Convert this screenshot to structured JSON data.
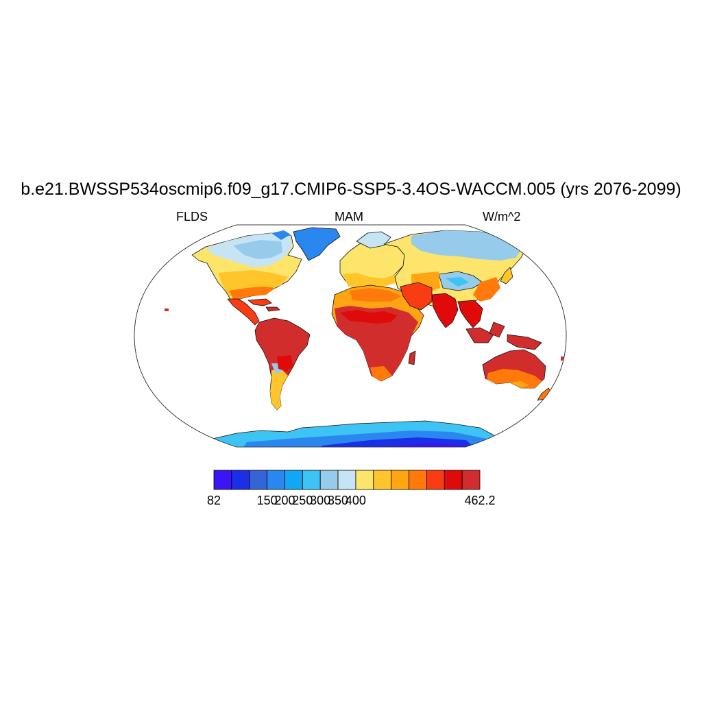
{
  "header": {
    "title": "b.e21.BWSSP534oscmip6.f09_g17.CMIP6-SSP5-3.4OS-WACCM.005 (yrs 2076-2099)",
    "variable": "FLDS",
    "season": "MAM",
    "units": "W/m^2"
  },
  "map": {
    "projection": "Robinson",
    "field": "FLDS",
    "ocean_fill": "#ffffff",
    "coastline_color": "#000000"
  },
  "colorbar": {
    "colors": [
      "#3a15f5",
      "#1a2fe6",
      "#3563d8",
      "#2a87f0",
      "#12a7f5",
      "#3ec3f5",
      "#96cbec",
      "#c6e4f4",
      "#fde56b",
      "#ffc52b",
      "#ffa514",
      "#ff7a0a",
      "#fa3c14",
      "#e00a0a",
      "#d22d2d"
    ],
    "tick_labels": [
      {
        "text": "82",
        "index": 0
      },
      {
        "text": "150",
        "index": 3
      },
      {
        "text": "200",
        "index": 4
      },
      {
        "text": "250",
        "index": 5
      },
      {
        "text": "300",
        "index": 6
      },
      {
        "text": "350",
        "index": 7
      },
      {
        "text": "400",
        "index": 8
      },
      {
        "text": "462.2",
        "index": 15
      }
    ],
    "min": 82,
    "max": 462.2
  }
}
